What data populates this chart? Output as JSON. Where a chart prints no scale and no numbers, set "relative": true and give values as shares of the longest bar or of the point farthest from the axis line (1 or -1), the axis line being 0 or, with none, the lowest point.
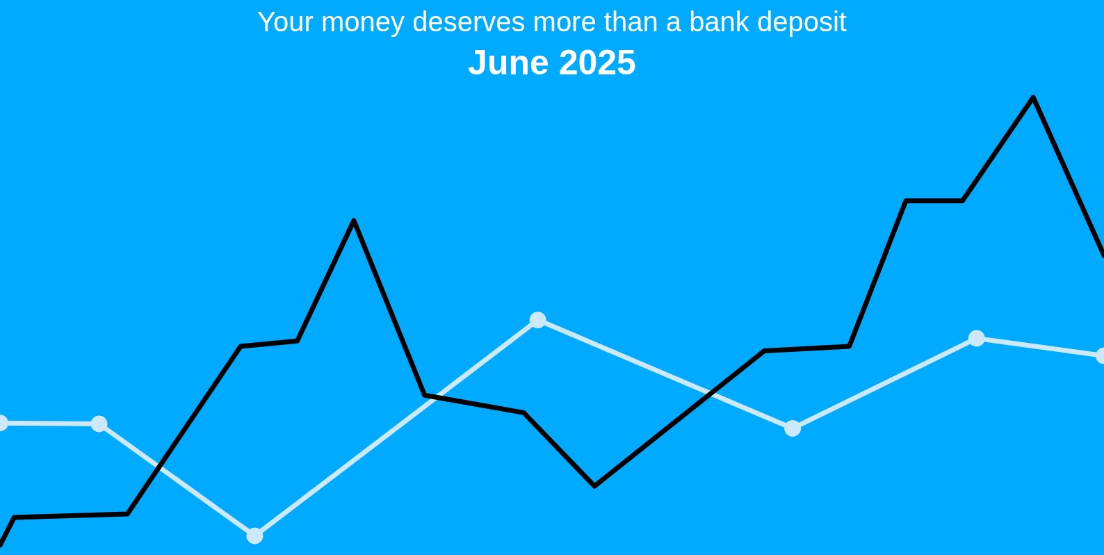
{
  "chart_data": {
    "type": "line",
    "title": "Your money deserves more than a bank deposit",
    "subtitle": "June 2025",
    "relative": true,
    "categories": [
      null,
      null,
      null,
      null,
      null,
      null,
      null,
      null,
      null,
      null,
      null,
      null,
      null,
      null,
      null,
      null,
      null,
      null,
      null,
      null,
      null,
      null,
      null,
      null,
      null,
      null,
      null,
      null,
      null,
      null,
      null,
      null,
      null,
      null,
      null,
      null,
      null,
      null,
      null,
      null,
      null,
      null,
      null,
      null,
      null,
      null,
      null,
      null,
      null,
      null,
      null,
      null,
      null,
      null,
      null,
      null,
      null,
      null,
      null,
      null,
      null,
      null,
      null,
      null,
      null,
      null,
      null,
      null,
      null,
      null,
      null,
      null,
      null,
      null,
      null,
      null,
      null,
      null,
      null
    ],
    "series": [
      {
        "color": "#000000",
        "marker": "none",
        "values": [
          0,
          0.062,
          null,
          null,
          null,
          null,
          null,
          null,
          null,
          0.07,
          null,
          null,
          null,
          null,
          null,
          null,
          null,
          0.444,
          null,
          null,
          null,
          0.456,
          null,
          null,
          null,
          0.725,
          null,
          null,
          null,
          null,
          0.335,
          null,
          null,
          null,
          null,
          null,
          null,
          0.296,
          null,
          null,
          null,
          null,
          0.132,
          null,
          null,
          null,
          null,
          null,
          null,
          null,
          null,
          null,
          null,
          null,
          0.434,
          null,
          null,
          null,
          null,
          null,
          0.444,
          null,
          null,
          null,
          0.769,
          null,
          null,
          null,
          0.769,
          null,
          null,
          null,
          null,
          1,
          null,
          null,
          null,
          null,
          0.647
        ]
      },
      {
        "color": "#cce9fb",
        "marker": "circle",
        "values": [
          0.273,
          null,
          null,
          null,
          null,
          null,
          null,
          0.271,
          null,
          null,
          null,
          null,
          null,
          null,
          null,
          null,
          null,
          null,
          0.021,
          null,
          null,
          null,
          null,
          null,
          null,
          null,
          null,
          null,
          null,
          null,
          null,
          null,
          null,
          null,
          null,
          null,
          null,
          null,
          0.503,
          null,
          null,
          null,
          null,
          null,
          null,
          null,
          null,
          null,
          null,
          null,
          null,
          null,
          null,
          null,
          null,
          null,
          0.261,
          null,
          null,
          null,
          null,
          null,
          null,
          null,
          null,
          null,
          null,
          null,
          null,
          0.462,
          null,
          null,
          null,
          null,
          null,
          null,
          null,
          null,
          0.423
        ]
      }
    ]
  }
}
